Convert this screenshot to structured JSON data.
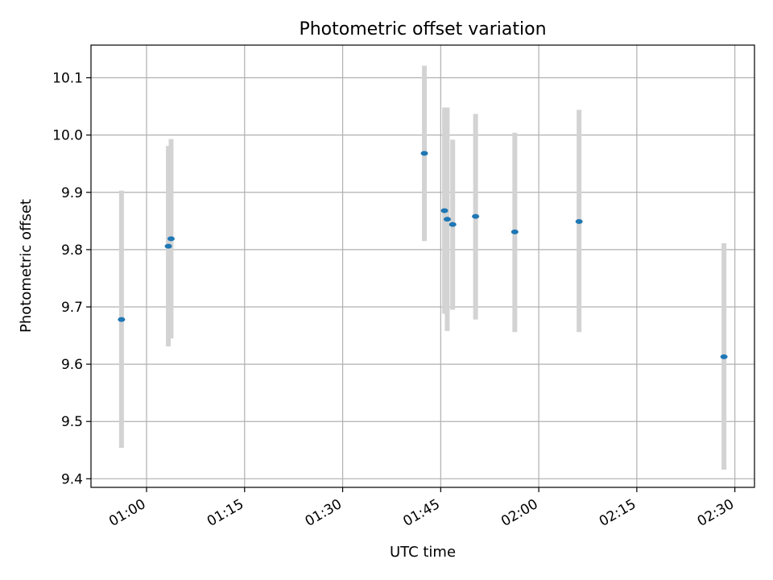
{
  "chart_data": {
    "type": "scatter",
    "title": "Photometric offset variation",
    "xlabel": "UTC time",
    "ylabel": "Photometric offset",
    "xlim": [
      "00:51:30",
      "02:33:00"
    ],
    "ylim": [
      9.385,
      10.157
    ],
    "grid": true,
    "x_ticks": [
      "01:00",
      "01:15",
      "01:30",
      "01:45",
      "02:00",
      "02:15",
      "02:30"
    ],
    "y_ticks": [
      "9.4",
      "9.5",
      "9.6",
      "9.7",
      "9.8",
      "9.9",
      "10.0",
      "10.1"
    ],
    "errorbar_color": "#d3d3d3",
    "marker_color": "#1f77b4",
    "points": [
      {
        "x": "00:56:10",
        "y": 9.678,
        "low": 9.454,
        "high": 9.903
      },
      {
        "x": "01:03:20",
        "y": 9.806,
        "low": 9.631,
        "high": 9.981
      },
      {
        "x": "01:03:45",
        "y": 9.819,
        "low": 9.645,
        "high": 9.993
      },
      {
        "x": "01:42:30",
        "y": 9.968,
        "low": 9.815,
        "high": 10.121
      },
      {
        "x": "01:45:35",
        "y": 9.868,
        "low": 9.688,
        "high": 10.048
      },
      {
        "x": "01:46:00",
        "y": 9.853,
        "low": 9.658,
        "high": 10.048
      },
      {
        "x": "01:46:50",
        "y": 9.844,
        "low": 9.695,
        "high": 9.992
      },
      {
        "x": "01:50:20",
        "y": 9.858,
        "low": 9.678,
        "high": 10.037
      },
      {
        "x": "01:56:20",
        "y": 9.831,
        "low": 9.656,
        "high": 10.004
      },
      {
        "x": "02:06:10",
        "y": 9.849,
        "low": 9.656,
        "high": 10.044
      },
      {
        "x": "02:28:20",
        "y": 9.613,
        "low": 9.416,
        "high": 9.811
      }
    ]
  }
}
